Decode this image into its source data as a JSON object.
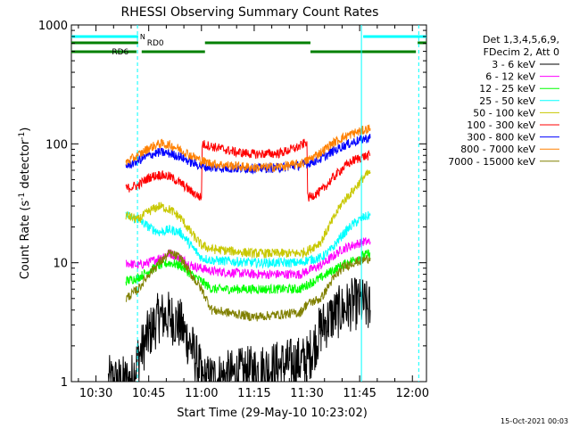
{
  "chart_data": {
    "type": "line",
    "title": "RHESSI Observing Summary Count Rates",
    "xlabel": "Start Time (29-May-10 10:23:02)",
    "ylabel_main": "Count Rate (s",
    "ylabel_sup1": "-1",
    "ylabel_mid": " detector",
    "ylabel_sup2": "-1",
    "ylabel_end": ")",
    "ylog": true,
    "ylim": [
      1,
      1000
    ],
    "xlim_minutes": [
      23,
      124
    ],
    "x_ticks": [
      {
        "m": 30,
        "label": "10:30"
      },
      {
        "m": 45,
        "label": "10:45"
      },
      {
        "m": 60,
        "label": "11:00"
      },
      {
        "m": 75,
        "label": "11:15"
      },
      {
        "m": 90,
        "label": "11:30"
      },
      {
        "m": 105,
        "label": "11:45"
      },
      {
        "m": 120,
        "label": "12:00"
      }
    ],
    "y_ticks": [
      {
        "v": 1,
        "label": "1"
      },
      {
        "v": 10,
        "label": "10"
      },
      {
        "v": 100,
        "label": "100"
      },
      {
        "v": 1000,
        "label": "1000"
      }
    ],
    "legend_header": [
      "Det 1,3,4,5,6,9,",
      "FDecim 2, Att 0"
    ],
    "series": [
      {
        "name": "3 - 6 keV",
        "color": "#000000",
        "points": [
          [
            33.5,
            1
          ],
          [
            34.5,
            1
          ],
          [
            40,
            1
          ],
          [
            42,
            1.6
          ],
          [
            45,
            2.5
          ],
          [
            48,
            3.5
          ],
          [
            51,
            3.5
          ],
          [
            54,
            3
          ],
          [
            57,
            2
          ],
          [
            59.5,
            1.3
          ],
          [
            60,
            1
          ],
          [
            90,
            1.5
          ],
          [
            92,
            2
          ],
          [
            94,
            2.8
          ],
          [
            97,
            3.5
          ],
          [
            100,
            4
          ],
          [
            103,
            4.5
          ],
          [
            106,
            4.5
          ],
          [
            108,
            4
          ]
        ]
      },
      {
        "name": "6 - 12 keV",
        "color": "#ff00ff",
        "points": [
          [
            38.5,
            10
          ],
          [
            42,
            9.5
          ],
          [
            45,
            10
          ],
          [
            48,
            11
          ],
          [
            51,
            12
          ],
          [
            54,
            11
          ],
          [
            57,
            9.5
          ],
          [
            60,
            9
          ],
          [
            63,
            8.5
          ],
          [
            75,
            8
          ],
          [
            88,
            8
          ],
          [
            90,
            8.5
          ],
          [
            94,
            9.5
          ],
          [
            97,
            11
          ],
          [
            100,
            13
          ],
          [
            103,
            14
          ],
          [
            106,
            15
          ],
          [
            108,
            15
          ]
        ]
      },
      {
        "name": "12 - 25 keV",
        "color": "#00ff00",
        "points": [
          [
            38.5,
            7
          ],
          [
            42,
            7.5
          ],
          [
            45,
            8.5
          ],
          [
            48,
            9.5
          ],
          [
            51,
            10
          ],
          [
            54,
            9.5
          ],
          [
            57,
            8
          ],
          [
            60,
            7
          ],
          [
            63,
            6
          ],
          [
            75,
            6
          ],
          [
            88,
            6
          ],
          [
            90,
            6.5
          ],
          [
            94,
            7.5
          ],
          [
            97,
            8.5
          ],
          [
            100,
            9.5
          ],
          [
            103,
            10.5
          ],
          [
            106,
            11.5
          ],
          [
            108,
            12
          ]
        ]
      },
      {
        "name": "25 - 50 keV",
        "color": "#00ffff",
        "points": [
          [
            38.5,
            25
          ],
          [
            42,
            23
          ],
          [
            45,
            20
          ],
          [
            48,
            18
          ],
          [
            51,
            19
          ],
          [
            54,
            18
          ],
          [
            57,
            14
          ],
          [
            60,
            11
          ],
          [
            63,
            10.5
          ],
          [
            75,
            10
          ],
          [
            88,
            10
          ],
          [
            90,
            10.5
          ],
          [
            94,
            11
          ],
          [
            97,
            13
          ],
          [
            100,
            17
          ],
          [
            103,
            21
          ],
          [
            106,
            24
          ],
          [
            108,
            25
          ]
        ]
      },
      {
        "name": "50 - 100 keV",
        "color": "#c8c800",
        "points": [
          [
            38.5,
            25
          ],
          [
            42,
            23
          ],
          [
            45,
            27
          ],
          [
            48,
            30
          ],
          [
            51,
            28
          ],
          [
            54,
            24
          ],
          [
            57,
            18
          ],
          [
            60,
            14
          ],
          [
            63,
            13
          ],
          [
            75,
            12
          ],
          [
            88,
            12
          ],
          [
            90,
            12.5
          ],
          [
            94,
            15
          ],
          [
            97,
            22
          ],
          [
            100,
            32
          ],
          [
            103,
            40
          ],
          [
            106,
            52
          ],
          [
            108,
            58
          ]
        ]
      },
      {
        "name": "100 - 300 keV",
        "color": "#ff0000",
        "points": [
          [
            38.5,
            42
          ],
          [
            42,
            45
          ],
          [
            45,
            52
          ],
          [
            48,
            55
          ],
          [
            51,
            53
          ],
          [
            54,
            47
          ],
          [
            57,
            40
          ],
          [
            60,
            35
          ],
          [
            60.2,
            100
          ],
          [
            63,
            95
          ],
          [
            70,
            85
          ],
          [
            75,
            82
          ],
          [
            82,
            83
          ],
          [
            88,
            95
          ],
          [
            90,
            105
          ],
          [
            90.2,
            35
          ],
          [
            94,
            40
          ],
          [
            97,
            50
          ],
          [
            100,
            62
          ],
          [
            103,
            72
          ],
          [
            106,
            78
          ],
          [
            108,
            80
          ]
        ]
      },
      {
        "name": "300 - 800 keV",
        "color": "#0000ff",
        "points": [
          [
            38.5,
            65
          ],
          [
            42,
            72
          ],
          [
            45,
            80
          ],
          [
            48,
            85
          ],
          [
            51,
            83
          ],
          [
            54,
            78
          ],
          [
            57,
            70
          ],
          [
            60,
            65
          ],
          [
            63,
            63
          ],
          [
            70,
            62
          ],
          [
            75,
            62
          ],
          [
            82,
            63
          ],
          [
            88,
            66
          ],
          [
            90,
            68
          ],
          [
            94,
            75
          ],
          [
            97,
            85
          ],
          [
            100,
            95
          ],
          [
            103,
            103
          ],
          [
            106,
            110
          ],
          [
            108,
            112
          ]
        ]
      },
      {
        "name": "800 - 7000 keV",
        "color": "#ff8000",
        "points": [
          [
            38.5,
            70
          ],
          [
            42,
            80
          ],
          [
            45,
            92
          ],
          [
            48,
            100
          ],
          [
            51,
            98
          ],
          [
            54,
            90
          ],
          [
            57,
            80
          ],
          [
            60,
            72
          ],
          [
            63,
            68
          ],
          [
            70,
            65
          ],
          [
            75,
            63
          ],
          [
            82,
            64
          ],
          [
            88,
            68
          ],
          [
            90,
            72
          ],
          [
            94,
            85
          ],
          [
            97,
            100
          ],
          [
            100,
            112
          ],
          [
            103,
            122
          ],
          [
            106,
            130
          ],
          [
            108,
            135
          ]
        ]
      },
      {
        "name": "7000 - 15000 keV",
        "color": "#808000",
        "points": [
          [
            38.5,
            5
          ],
          [
            42,
            6
          ],
          [
            45,
            8
          ],
          [
            48,
            10
          ],
          [
            51,
            12
          ],
          [
            54,
            11
          ],
          [
            57,
            8
          ],
          [
            60,
            6
          ],
          [
            63,
            4
          ],
          [
            75,
            3.5
          ],
          [
            88,
            3.8
          ],
          [
            90,
            4.5
          ],
          [
            94,
            5
          ],
          [
            97,
            7
          ],
          [
            100,
            9
          ],
          [
            103,
            10
          ],
          [
            106,
            10.5
          ],
          [
            108,
            11
          ]
        ]
      }
    ],
    "markers": [
      {
        "type": "cyan-bar",
        "segments": [
          [
            23,
            42
          ],
          [
            106,
            124
          ]
        ],
        "label": "N",
        "label_m": 42.5
      },
      {
        "type": "green-bar-rd0",
        "segments": [
          [
            61,
            91
          ]
        ],
        "label": "RD0",
        "label_m": 44.5
      },
      {
        "type": "green-bar-top",
        "segments": [
          [
            23,
            42
          ],
          [
            121.5,
            124
          ]
        ]
      },
      {
        "type": "green-bar-rd6",
        "segments": [
          [
            23,
            41.5
          ],
          [
            43,
            61
          ],
          [
            91,
            121
          ]
        ],
        "label": "RD6",
        "label_m": 34.5
      }
    ],
    "vlines_minutes": [
      41.8,
      105.5,
      121.8
    ],
    "footer_date": "15-Oct-2021 00:03",
    "legend_placement": "right"
  }
}
